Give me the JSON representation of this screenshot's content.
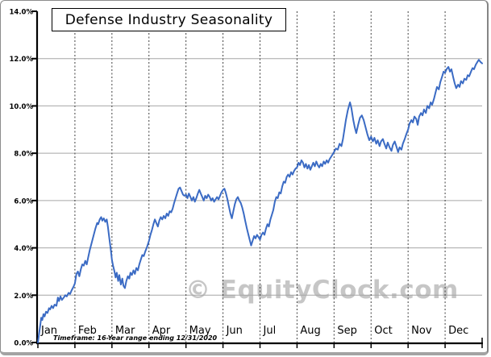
{
  "chart_data": {
    "type": "line",
    "title": "Defense Industry Seasonality",
    "timeframe_note": "Timeframe: 16-Year range ending 12/31/2020",
    "watermark": "© EquityClock.com",
    "x_categories": [
      "Jan",
      "Feb",
      "Mar",
      "Apr",
      "May",
      "Jun",
      "Jul",
      "Aug",
      "Sep",
      "Oct",
      "Nov",
      "Dec"
    ],
    "xlim_months": [
      0,
      12
    ],
    "ylim": [
      0,
      14
    ],
    "y_tick_values": [
      0,
      2,
      4,
      6,
      8,
      10,
      12,
      14
    ],
    "y_tick_labels": [
      "0.0%",
      "2.0%",
      "4.0%",
      "6.0%",
      "8.0%",
      "10.0%",
      "12.0%",
      "14.0%"
    ],
    "grid": {
      "horizontal": "solid",
      "vertical": "dashed-at-month-starts"
    },
    "legend": "none",
    "colors": {
      "series": "#3b6bc4",
      "h_grid": "#a6a6a6",
      "v_grid": "#3f3f3f",
      "axis": "#000000",
      "watermark": "#c6c6c6",
      "text": "#000000"
    },
    "series": [
      {
        "name": "Defense Industry Seasonality",
        "units": "cumulative % gain",
        "color": "#3b6bc4",
        "points": [
          [
            0,
            0
          ],
          [
            0.04,
            0.45
          ],
          [
            0.07,
            0.8
          ],
          [
            0.09,
            1.05
          ],
          [
            0.12,
            0.95
          ],
          [
            0.15,
            1.2
          ],
          [
            0.18,
            1.1
          ],
          [
            0.22,
            1.3
          ],
          [
            0.26,
            1.25
          ],
          [
            0.3,
            1.45
          ],
          [
            0.33,
            1.4
          ],
          [
            0.37,
            1.55
          ],
          [
            0.41,
            1.45
          ],
          [
            0.45,
            1.6
          ],
          [
            0.5,
            1.55
          ],
          [
            0.54,
            1.9
          ],
          [
            0.57,
            1.75
          ],
          [
            0.61,
            1.95
          ],
          [
            0.65,
            1.8
          ],
          [
            0.7,
            1.9
          ],
          [
            0.74,
            2
          ],
          [
            0.78,
            1.95
          ],
          [
            0.83,
            2.1
          ],
          [
            0.87,
            2.05
          ],
          [
            0.91,
            2.2
          ],
          [
            0.96,
            2.35
          ],
          [
            1,
            2.5
          ],
          [
            1.04,
            2.9
          ],
          [
            1.08,
            3
          ],
          [
            1.12,
            2.8
          ],
          [
            1.16,
            3.1
          ],
          [
            1.2,
            3.3
          ],
          [
            1.24,
            3.25
          ],
          [
            1.28,
            3.45
          ],
          [
            1.32,
            3.3
          ],
          [
            1.36,
            3.6
          ],
          [
            1.4,
            3.9
          ],
          [
            1.45,
            4.2
          ],
          [
            1.5,
            4.5
          ],
          [
            1.55,
            4.8
          ],
          [
            1.6,
            5.05
          ],
          [
            1.63,
            5
          ],
          [
            1.67,
            5.2
          ],
          [
            1.71,
            5.3
          ],
          [
            1.74,
            5.15
          ],
          [
            1.78,
            5.25
          ],
          [
            1.82,
            5.1
          ],
          [
            1.86,
            5.2
          ],
          [
            1.89,
            4.9
          ],
          [
            1.93,
            4.4
          ],
          [
            1.97,
            3.9
          ],
          [
            2,
            3.5
          ],
          [
            2.03,
            3.25
          ],
          [
            2.07,
            3
          ],
          [
            2.1,
            2.75
          ],
          [
            2.13,
            2.95
          ],
          [
            2.17,
            2.6
          ],
          [
            2.2,
            2.85
          ],
          [
            2.24,
            2.45
          ],
          [
            2.28,
            2.7
          ],
          [
            2.31,
            2.4
          ],
          [
            2.35,
            2.3
          ],
          [
            2.39,
            2.6
          ],
          [
            2.43,
            2.8
          ],
          [
            2.47,
            2.7
          ],
          [
            2.5,
            2.95
          ],
          [
            2.54,
            2.85
          ],
          [
            2.58,
            3.05
          ],
          [
            2.62,
            2.9
          ],
          [
            2.66,
            3.15
          ],
          [
            2.7,
            3.05
          ],
          [
            2.74,
            3.3
          ],
          [
            2.78,
            3.5
          ],
          [
            2.82,
            3.7
          ],
          [
            2.86,
            3.65
          ],
          [
            2.9,
            3.85
          ],
          [
            2.95,
            4.05
          ],
          [
            3,
            4.3
          ],
          [
            3.04,
            4.55
          ],
          [
            3.08,
            4.75
          ],
          [
            3.12,
            5
          ],
          [
            3.16,
            5.2
          ],
          [
            3.2,
            5.05
          ],
          [
            3.24,
            4.9
          ],
          [
            3.28,
            5.15
          ],
          [
            3.32,
            5.3
          ],
          [
            3.36,
            5.2
          ],
          [
            3.4,
            5.35
          ],
          [
            3.44,
            5.25
          ],
          [
            3.48,
            5.45
          ],
          [
            3.52,
            5.35
          ],
          [
            3.56,
            5.55
          ],
          [
            3.6,
            5.5
          ],
          [
            3.64,
            5.65
          ],
          [
            3.68,
            5.9
          ],
          [
            3.72,
            6.1
          ],
          [
            3.76,
            6.3
          ],
          [
            3.8,
            6.5
          ],
          [
            3.84,
            6.55
          ],
          [
            3.88,
            6.4
          ],
          [
            3.92,
            6.25
          ],
          [
            3.96,
            6.2
          ],
          [
            4,
            6.25
          ],
          [
            4.04,
            6.1
          ],
          [
            4.08,
            6.3
          ],
          [
            4.12,
            6.15
          ],
          [
            4.16,
            6
          ],
          [
            4.2,
            6.15
          ],
          [
            4.24,
            5.95
          ],
          [
            4.28,
            6.1
          ],
          [
            4.32,
            6.3
          ],
          [
            4.36,
            6.45
          ],
          [
            4.4,
            6.3
          ],
          [
            4.44,
            6.15
          ],
          [
            4.48,
            6
          ],
          [
            4.52,
            6.2
          ],
          [
            4.56,
            6.1
          ],
          [
            4.6,
            6.25
          ],
          [
            4.64,
            6.15
          ],
          [
            4.68,
            6
          ],
          [
            4.72,
            6.1
          ],
          [
            4.76,
            5.95
          ],
          [
            4.8,
            6.05
          ],
          [
            4.84,
            6.15
          ],
          [
            4.88,
            6.05
          ],
          [
            4.92,
            6.2
          ],
          [
            4.96,
            6.35
          ],
          [
            5,
            6.45
          ],
          [
            5.04,
            6.5
          ],
          [
            5.08,
            6.3
          ],
          [
            5.12,
            6.05
          ],
          [
            5.16,
            5.75
          ],
          [
            5.2,
            5.45
          ],
          [
            5.24,
            5.25
          ],
          [
            5.28,
            5.55
          ],
          [
            5.32,
            5.85
          ],
          [
            5.36,
            6.05
          ],
          [
            5.4,
            6.15
          ],
          [
            5.44,
            6
          ],
          [
            5.48,
            5.9
          ],
          [
            5.52,
            5.7
          ],
          [
            5.56,
            5.45
          ],
          [
            5.6,
            5.15
          ],
          [
            5.64,
            4.85
          ],
          [
            5.68,
            4.6
          ],
          [
            5.72,
            4.35
          ],
          [
            5.76,
            4.1
          ],
          [
            5.8,
            4.3
          ],
          [
            5.84,
            4.5
          ],
          [
            5.88,
            4.4
          ],
          [
            5.92,
            4.55
          ],
          [
            5.96,
            4.45
          ],
          [
            6,
            4.35
          ],
          [
            6.04,
            4.55
          ],
          [
            6.08,
            4.65
          ],
          [
            6.12,
            4.55
          ],
          [
            6.16,
            4.8
          ],
          [
            6.2,
            5
          ],
          [
            6.24,
            4.9
          ],
          [
            6.28,
            5.2
          ],
          [
            6.32,
            5.4
          ],
          [
            6.36,
            5.6
          ],
          [
            6.4,
            5.95
          ],
          [
            6.44,
            6.15
          ],
          [
            6.48,
            6.1
          ],
          [
            6.52,
            6.35
          ],
          [
            6.56,
            6.3
          ],
          [
            6.6,
            6.6
          ],
          [
            6.64,
            6.8
          ],
          [
            6.68,
            6.75
          ],
          [
            6.72,
            7
          ],
          [
            6.76,
            7.1
          ],
          [
            6.8,
            7
          ],
          [
            6.84,
            7.2
          ],
          [
            6.88,
            7.1
          ],
          [
            6.92,
            7.25
          ],
          [
            6.96,
            7.35
          ],
          [
            7,
            7.4
          ],
          [
            7.04,
            7.6
          ],
          [
            7.08,
            7.5
          ],
          [
            7.12,
            7.7
          ],
          [
            7.16,
            7.6
          ],
          [
            7.2,
            7.4
          ],
          [
            7.24,
            7.55
          ],
          [
            7.28,
            7.35
          ],
          [
            7.32,
            7.5
          ],
          [
            7.36,
            7.3
          ],
          [
            7.4,
            7.45
          ],
          [
            7.44,
            7.6
          ],
          [
            7.48,
            7.45
          ],
          [
            7.52,
            7.65
          ],
          [
            7.56,
            7.5
          ],
          [
            7.6,
            7.4
          ],
          [
            7.64,
            7.55
          ],
          [
            7.68,
            7.45
          ],
          [
            7.72,
            7.65
          ],
          [
            7.76,
            7.55
          ],
          [
            7.8,
            7.7
          ],
          [
            7.84,
            7.6
          ],
          [
            7.88,
            7.75
          ],
          [
            7.92,
            7.85
          ],
          [
            7.96,
            7.95
          ],
          [
            8,
            8.05
          ],
          [
            8.05,
            8.2
          ],
          [
            8.1,
            8.15
          ],
          [
            8.15,
            8.4
          ],
          [
            8.2,
            8.3
          ],
          [
            8.24,
            8.6
          ],
          [
            8.28,
            9
          ],
          [
            8.32,
            9.4
          ],
          [
            8.37,
            9.8
          ],
          [
            8.43,
            10.15
          ],
          [
            8.47,
            9.9
          ],
          [
            8.52,
            9.4
          ],
          [
            8.56,
            9.1
          ],
          [
            8.6,
            8.85
          ],
          [
            8.65,
            9.2
          ],
          [
            8.7,
            9.5
          ],
          [
            8.75,
            9.6
          ],
          [
            8.8,
            9.4
          ],
          [
            8.85,
            9.1
          ],
          [
            8.9,
            8.8
          ],
          [
            8.95,
            8.55
          ],
          [
            9,
            8.7
          ],
          [
            9.05,
            8.5
          ],
          [
            9.09,
            8.65
          ],
          [
            9.14,
            8.4
          ],
          [
            9.18,
            8.55
          ],
          [
            9.23,
            8.3
          ],
          [
            9.27,
            8.5
          ],
          [
            9.32,
            8.6
          ],
          [
            9.36,
            8.4
          ],
          [
            9.41,
            8.2
          ],
          [
            9.45,
            8.45
          ],
          [
            9.5,
            8.25
          ],
          [
            9.55,
            8.1
          ],
          [
            9.59,
            8.35
          ],
          [
            9.64,
            8.5
          ],
          [
            9.68,
            8.3
          ],
          [
            9.73,
            8.05
          ],
          [
            9.77,
            8.25
          ],
          [
            9.82,
            8.15
          ],
          [
            9.86,
            8.4
          ],
          [
            9.91,
            8.6
          ],
          [
            9.95,
            8.8
          ],
          [
            10,
            9
          ],
          [
            10.04,
            9.25
          ],
          [
            10.09,
            9.4
          ],
          [
            10.13,
            9.3
          ],
          [
            10.17,
            9.55
          ],
          [
            10.22,
            9.45
          ],
          [
            10.26,
            9.2
          ],
          [
            10.3,
            9.55
          ],
          [
            10.35,
            9.7
          ],
          [
            10.39,
            9.6
          ],
          [
            10.43,
            9.85
          ],
          [
            10.48,
            9.7
          ],
          [
            10.52,
            10
          ],
          [
            10.57,
            9.9
          ],
          [
            10.61,
            10.15
          ],
          [
            10.65,
            10.05
          ],
          [
            10.7,
            10.3
          ],
          [
            10.74,
            10.55
          ],
          [
            10.78,
            10.8
          ],
          [
            10.83,
            10.7
          ],
          [
            10.87,
            11
          ],
          [
            10.91,
            11.2
          ],
          [
            10.96,
            11.45
          ],
          [
            11,
            11.4
          ],
          [
            11.04,
            11.55
          ],
          [
            11.09,
            11.65
          ],
          [
            11.13,
            11.45
          ],
          [
            11.17,
            11.55
          ],
          [
            11.22,
            11.2
          ],
          [
            11.26,
            10.95
          ],
          [
            11.3,
            10.75
          ],
          [
            11.35,
            10.9
          ],
          [
            11.39,
            10.8
          ],
          [
            11.43,
            11.05
          ],
          [
            11.48,
            10.95
          ],
          [
            11.52,
            11.15
          ],
          [
            11.57,
            11.1
          ],
          [
            11.61,
            11.3
          ],
          [
            11.65,
            11.25
          ],
          [
            11.7,
            11.45
          ],
          [
            11.74,
            11.6
          ],
          [
            11.78,
            11.55
          ],
          [
            11.83,
            11.75
          ],
          [
            11.87,
            11.85
          ],
          [
            11.91,
            11.95
          ],
          [
            11.96,
            11.85
          ],
          [
            12,
            11.8
          ]
        ]
      }
    ]
  }
}
